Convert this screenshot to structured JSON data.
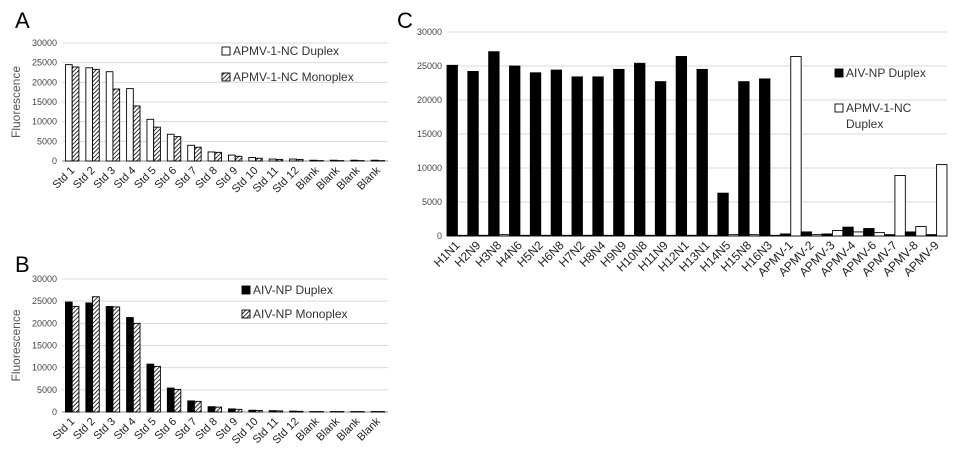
{
  "chart_data": [
    {
      "panel": "A",
      "type": "bar",
      "ylabel": "Fluorescence",
      "ylim": [
        0,
        30000
      ],
      "yticks": [
        0,
        5000,
        10000,
        15000,
        20000,
        25000,
        30000
      ],
      "grid": true,
      "legend_position": "top-right",
      "categories": [
        "Std 1",
        "Std 2",
        "Std 3",
        "Std 4",
        "Std 5",
        "Std 6",
        "Std 7",
        "Std 8",
        "Std 9",
        "Std 10",
        "Std 11",
        "Std 12",
        "Blank",
        "Blank",
        "Blank",
        "Blank"
      ],
      "series": [
        {
          "name": "APMV-1-NC Duplex",
          "fill": "white",
          "values": [
            24500,
            23700,
            22700,
            18400,
            10600,
            6800,
            4000,
            2300,
            1500,
            900,
            500,
            500,
            200,
            200,
            200,
            200
          ]
        },
        {
          "name": "APMV-1-NC Monoplex",
          "fill": "hatch",
          "values": [
            23900,
            23300,
            18300,
            14000,
            8600,
            6200,
            3500,
            2200,
            1200,
            700,
            400,
            400,
            100,
            100,
            100,
            100
          ]
        }
      ]
    },
    {
      "panel": "B",
      "type": "bar",
      "ylabel": "Fluorescence",
      "ylim": [
        0,
        30000
      ],
      "yticks": [
        0,
        5000,
        10000,
        15000,
        20000,
        25000,
        30000
      ],
      "grid": true,
      "legend_position": "top-right",
      "categories": [
        "Std 1",
        "Std 2",
        "Std 3",
        "Std 4",
        "Std 5",
        "Std 6",
        "Std 7",
        "Std 8",
        "Std 9",
        "Std 10",
        "Std 11",
        "Std 12",
        "Blank",
        "Blank",
        "Blank",
        "Blank"
      ],
      "series": [
        {
          "name": "AIV-NP Duplex",
          "fill": "black",
          "values": [
            24800,
            24600,
            23800,
            21300,
            10800,
            5400,
            2500,
            1200,
            700,
            400,
            300,
            200,
            100,
            100,
            100,
            100
          ]
        },
        {
          "name": "AIV-NP Monoplex",
          "fill": "hatch",
          "values": [
            23800,
            26000,
            23700,
            20000,
            10300,
            5100,
            2400,
            1100,
            600,
            350,
            250,
            150,
            100,
            100,
            100,
            100
          ]
        }
      ]
    },
    {
      "panel": "C",
      "type": "bar",
      "ylim": [
        0,
        30000
      ],
      "yticks": [
        0,
        5000,
        10000,
        15000,
        20000,
        25000,
        30000
      ],
      "grid": true,
      "legend_position": "top-right",
      "categories": [
        "H1N1",
        "H2N9",
        "H3N8",
        "H4N6",
        "H5N2",
        "H6N8",
        "H7N2",
        "H8N4",
        "H9N9",
        "H10N8",
        "H11N9",
        "H12N1",
        "H13N1",
        "H14N5",
        "H15N8",
        "H16N3",
        "APMV-1",
        "APMV-2",
        "APMV-3",
        "APMV-4",
        "APMV-6",
        "APMV-7",
        "APMV-8",
        "APMV-9"
      ],
      "series": [
        {
          "name": "AIV-NP Duplex",
          "fill": "black",
          "values": [
            25100,
            24200,
            27100,
            25000,
            24000,
            24400,
            23400,
            23400,
            24500,
            25400,
            22700,
            26400,
            24500,
            6300,
            22700,
            23100,
            300,
            600,
            300,
            1300,
            1100,
            200,
            600,
            200
          ]
        },
        {
          "name": "APMV-1-NC Duplex",
          "fill": "white",
          "values": [
            100,
            100,
            200,
            100,
            100,
            100,
            100,
            100,
            100,
            100,
            100,
            100,
            100,
            200,
            200,
            100,
            26400,
            200,
            800,
            600,
            500,
            8900,
            1400,
            10500
          ]
        }
      ]
    }
  ],
  "legend_c_label_1": "AIV-NP Duplex",
  "legend_c_label_2a": "APMV-1-NC",
  "legend_c_label_2b": "Duplex"
}
